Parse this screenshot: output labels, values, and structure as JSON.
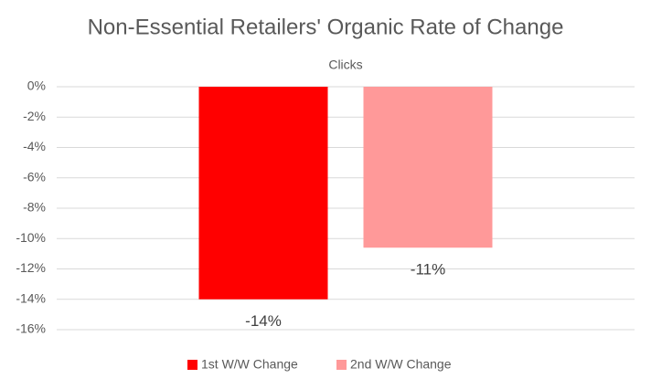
{
  "chart_data": {
    "type": "bar",
    "title": "Non-Essential Retailers' Organic Rate of Change",
    "categories": [
      "Clicks"
    ],
    "series": [
      {
        "name": "1st W/W Change",
        "color": "#ff0000",
        "values": [
          -14
        ],
        "value_labels": [
          "-14%"
        ]
      },
      {
        "name": "2nd W/W Change",
        "color": "#ff9999",
        "values": [
          -10.6
        ],
        "value_labels": [
          "-11%"
        ]
      }
    ],
    "ylim": [
      -16,
      0
    ],
    "yticks": [
      {
        "value": 0,
        "label": "0%"
      },
      {
        "value": -2,
        "label": "-2%"
      },
      {
        "value": -4,
        "label": "-4%"
      },
      {
        "value": -6,
        "label": "-6%"
      },
      {
        "value": -8,
        "label": "-8%"
      },
      {
        "value": -10,
        "label": "-10%"
      },
      {
        "value": -12,
        "label": "-12%"
      },
      {
        "value": -14,
        "label": "-14%"
      },
      {
        "value": -16,
        "label": "-16%"
      }
    ],
    "grid": true,
    "legend": "bottom"
  }
}
